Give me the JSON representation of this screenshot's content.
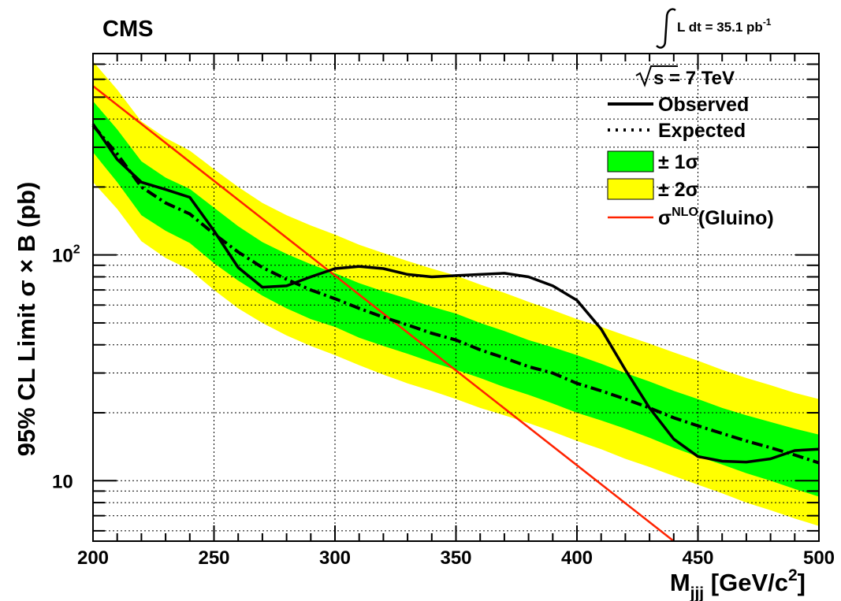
{
  "chart_data": {
    "type": "line",
    "experiment_label": "CMS",
    "lumi": {
      "prefix": "L dt = 35.1 pb",
      "superscript": "-1"
    },
    "energy_label": "s = 7 TeV",
    "xlabel": {
      "main": "M",
      "subscript": "jjj",
      "unit_main": " [GeV/c",
      "unit_sup": "2",
      "unit_end": "]"
    },
    "ylabel": "95% CL Limit σ × B (pb)",
    "xlim": [
      200,
      500
    ],
    "ylim": [
      5.4,
      780
    ],
    "yscale": "log",
    "grid": true,
    "legend_position": "top-right",
    "x_tick_labels": [
      "200",
      "250",
      "300",
      "350",
      "400",
      "450",
      "500"
    ],
    "y_tick_labels": [
      {
        "value": 10,
        "base": "10",
        "sup": ""
      },
      {
        "value": 100,
        "base": "10",
        "sup": "2"
      }
    ],
    "legend": [
      {
        "style": "solid",
        "label": "Observed",
        "sup": "",
        "suffix": ""
      },
      {
        "style": "dashdot",
        "label": "Expected",
        "sup": "",
        "suffix": ""
      },
      {
        "style": "band1",
        "label": "± 1σ",
        "sup": "",
        "suffix": ""
      },
      {
        "style": "band2",
        "label": "± 2σ",
        "sup": "",
        "suffix": ""
      },
      {
        "style": "theory",
        "label": "σ",
        "sup": "NLO",
        "suffix": "(Gluino)"
      }
    ],
    "colors": {
      "observed": "#000000",
      "expected": "#000000",
      "band1": "#00ff00",
      "band2": "#ffff00",
      "theory": "#ff2200"
    },
    "x": [
      200,
      210,
      220,
      230,
      240,
      250,
      260,
      270,
      280,
      290,
      300,
      310,
      320,
      330,
      340,
      350,
      360,
      370,
      380,
      390,
      400,
      410,
      420,
      430,
      440,
      450,
      460,
      470,
      480,
      490,
      500
    ],
    "series": [
      {
        "name": "Observed",
        "role": "observed",
        "values": [
          380,
          265,
          210,
          195,
          180,
          128,
          88,
          72,
          73,
          80,
          87,
          89,
          87,
          82,
          80,
          81,
          82,
          83,
          80,
          73,
          63,
          47,
          31,
          21,
          15.3,
          12.8,
          12.2,
          12.1,
          12.5,
          13.6,
          13.8
        ]
      },
      {
        "name": "Expected",
        "role": "expected",
        "values": [
          375,
          280,
          200,
          170,
          152,
          124,
          103,
          88,
          78,
          70,
          64,
          58,
          53,
          49,
          45,
          42,
          38,
          35,
          32,
          30,
          27,
          25,
          23,
          21,
          19,
          17.5,
          16.2,
          15,
          14,
          13,
          12
        ]
      },
      {
        "name": "± 1σ",
        "role": "band1",
        "low": [
          285,
          210,
          150,
          128,
          113,
          92,
          77,
          66,
          58,
          52,
          48,
          43,
          39.5,
          36.5,
          33.5,
          31,
          28.5,
          26,
          24,
          22,
          20,
          18.5,
          17,
          15.5,
          14,
          12.8,
          11.8,
          10.8,
          10,
          9.2,
          8.5
        ],
        "high": [
          480,
          360,
          260,
          220,
          196,
          162,
          134,
          114,
          101,
          91,
          83,
          75,
          69,
          64,
          59,
          55,
          50,
          46,
          42,
          39,
          36,
          33,
          30,
          27.5,
          25,
          23,
          21,
          19.5,
          18.2,
          17,
          16
        ]
      },
      {
        "name": "± 2σ",
        "role": "band2",
        "low": [
          210,
          160,
          115,
          97,
          86,
          70,
          58,
          50,
          44,
          39.5,
          36,
          32.5,
          29.5,
          27,
          25,
          23,
          21,
          19.5,
          18,
          16.5,
          15,
          13.8,
          12.5,
          11.5,
          10.5,
          9.6,
          8.8,
          8,
          7.4,
          6.8,
          6.3
        ],
        "high": [
          720,
          540,
          390,
          330,
          290,
          240,
          200,
          170,
          150,
          135,
          123,
          111,
          102,
          94,
          87,
          81,
          74,
          68,
          62,
          57,
          52,
          48,
          44,
          40.5,
          37,
          34,
          31,
          28.5,
          26.5,
          24.5,
          23
        ]
      }
    ],
    "theory": {
      "name": "σNLO(Gluino)",
      "x": [
        200,
        440
      ],
      "values": [
        560,
        5.4
      ]
    }
  }
}
